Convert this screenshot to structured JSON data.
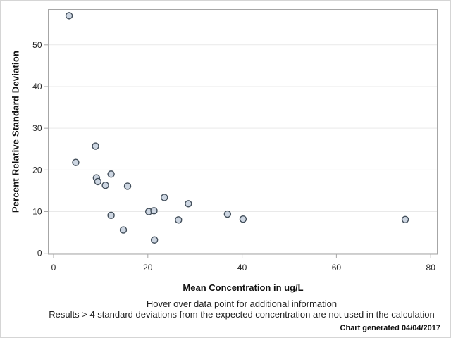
{
  "window": {
    "background": "#ffffff",
    "outer_border_color": "#d5d5d5"
  },
  "colors": {
    "plot_frame": "#a6a6a6",
    "gridline": "#e9e9e9",
    "tick": "#a6a6a6",
    "tick_label": "#262626",
    "marker_fill": "#cdd6e2",
    "marker_stroke": "#424e5a"
  },
  "chart_data": {
    "type": "scatter",
    "title": "",
    "xlabel": "Mean Concentration in ug/L",
    "ylabel": "Percent Relative Standard Deviation",
    "xlim": [
      0,
      81.5
    ],
    "ylim": [
      0,
      58.6
    ],
    "x_ticks": [
      0,
      20,
      40,
      60,
      80
    ],
    "y_ticks": [
      0,
      10,
      20,
      30,
      40,
      50
    ],
    "grid": "horizontal-only",
    "legend": "none",
    "marker": {
      "shape": "circle",
      "radius": 4.5
    },
    "points": [
      {
        "x": 3.3,
        "y": 57.0
      },
      {
        "x": 4.7,
        "y": 21.8
      },
      {
        "x": 8.9,
        "y": 25.7
      },
      {
        "x": 9.1,
        "y": 18.1
      },
      {
        "x": 9.4,
        "y": 17.2
      },
      {
        "x": 11.0,
        "y": 16.3
      },
      {
        "x": 12.2,
        "y": 19.0
      },
      {
        "x": 12.2,
        "y": 9.1
      },
      {
        "x": 14.8,
        "y": 5.6
      },
      {
        "x": 15.7,
        "y": 16.1
      },
      {
        "x": 20.2,
        "y": 10.0
      },
      {
        "x": 21.3,
        "y": 10.2
      },
      {
        "x": 21.4,
        "y": 3.2
      },
      {
        "x": 23.5,
        "y": 13.4
      },
      {
        "x": 26.5,
        "y": 8.0
      },
      {
        "x": 28.6,
        "y": 11.9
      },
      {
        "x": 36.9,
        "y": 9.4
      },
      {
        "x": 40.2,
        "y": 8.2
      },
      {
        "x": 74.6,
        "y": 8.1
      }
    ]
  },
  "footnotes": {
    "line1": "Hover over data point for additional information",
    "line2": "Results > 4 standard deviations from the expected concentration are not used in the calculation",
    "generated": "Chart generated 04/04/2017"
  }
}
